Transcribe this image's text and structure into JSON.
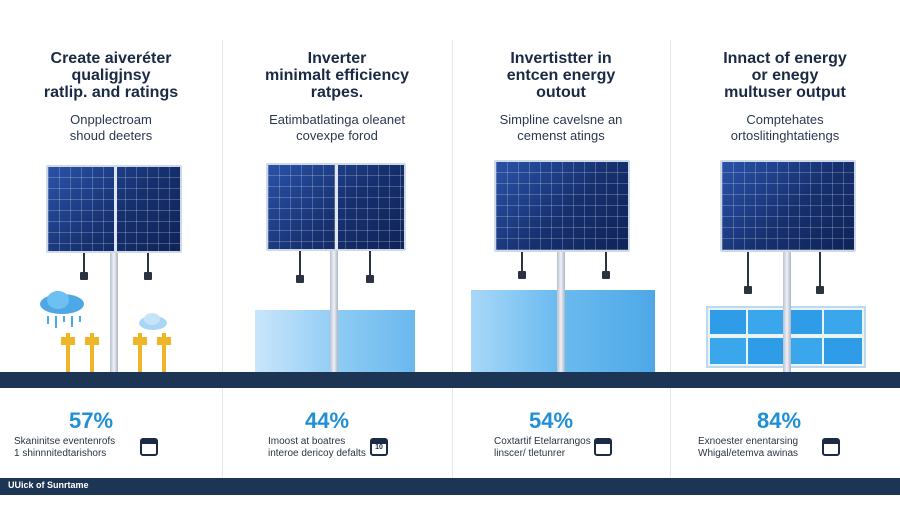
{
  "columns": [
    {
      "title": [
        "Create aiveréter",
        "qualigjnsy",
        "ratlip. and ratings"
      ],
      "subtitle": [
        "Onpplectroam",
        "shoud deeters"
      ],
      "percent": "57%",
      "caption": [
        "Skaninitse eventenrofs",
        "1 shinnnitedtarishors"
      ],
      "icon_text": "",
      "icon": "calendar-icon"
    },
    {
      "title": [
        "Inverter",
        "minimalt efficiency",
        "ratpes."
      ],
      "subtitle": [
        "Eatimbatlatinga oleanet",
        "covexpe forod"
      ],
      "percent": "44%",
      "caption": [
        "Imoost at boatres",
        "interoe dericoy defalts"
      ],
      "icon_text": "10",
      "icon": "calendar-icon"
    },
    {
      "title": [
        "Invertistter in",
        "entcen energy",
        "outout"
      ],
      "subtitle": [
        "Simpline cavelsne an",
        "cemenst atings"
      ],
      "percent": "54%",
      "caption": [
        "Coxtartif Etelarrangos",
        "linscer/ tletunrer"
      ],
      "icon_text": "",
      "icon": "calendar-icon"
    },
    {
      "title": [
        "Innact of energy",
        "or enegy",
        "multuser output"
      ],
      "subtitle": [
        "Comptehates",
        "ortoslitinghtatiengs"
      ],
      "percent": "84%",
      "caption": [
        "Exnoester enentarsing",
        "Whigal/etemva awinas"
      ],
      "icon_text": "",
      "icon": "calendar-icon"
    }
  ],
  "footer": {
    "text": "UUick of Sunrtame"
  },
  "colors": {
    "accent": "#1f8fd6",
    "ground": "#1d3554",
    "panel": "#17347a"
  }
}
